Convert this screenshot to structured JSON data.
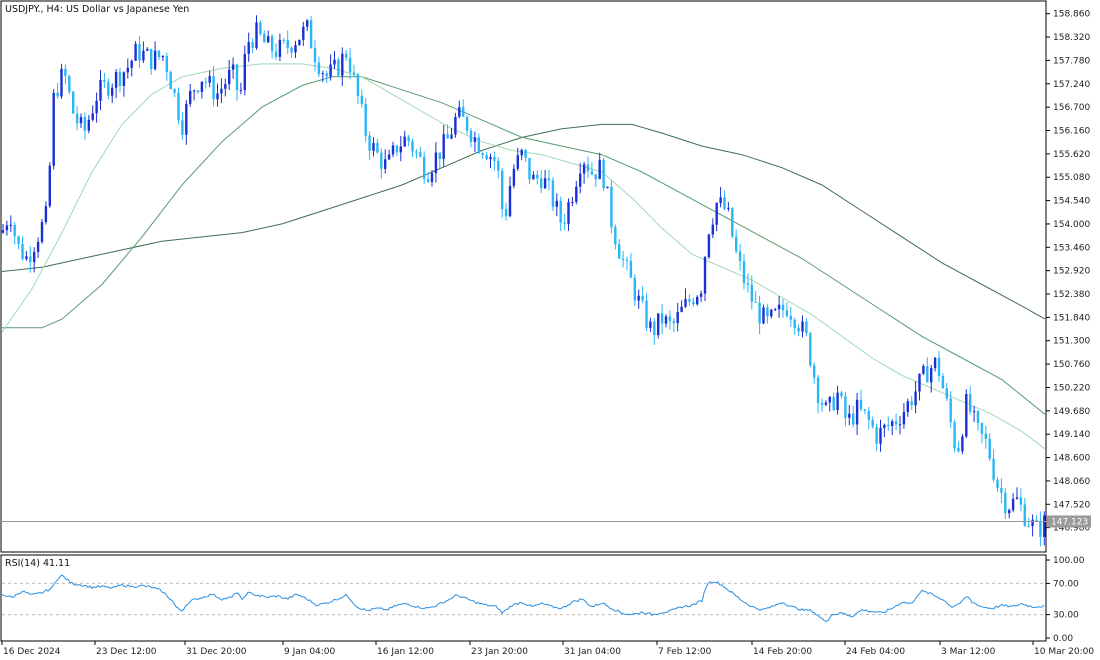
{
  "chart_data": [
    {
      "type": "candlestick",
      "title": "USDJPY., H4:  US Dollar vs Japanese Yen",
      "ylim": [
        146.44,
        159.13
      ],
      "y_ticks": [
        "158.860",
        "158.320",
        "157.780",
        "157.240",
        "156.700",
        "156.160",
        "155.620",
        "155.080",
        "154.540",
        "154.000",
        "153.460",
        "152.920",
        "152.380",
        "151.840",
        "151.300",
        "150.760",
        "150.220",
        "149.680",
        "149.140",
        "148.600",
        "148.060",
        "147.520",
        "146.980"
      ],
      "x_ticks": [
        "16 Dec 2024",
        "23 Dec 12:00",
        "31 Dec 20:00",
        "9 Jan 04:00",
        "16 Jan 12:00",
        "23 Jan 20:00",
        "31 Jan 04:00",
        "7 Feb 12:00",
        "14 Feb 20:00",
        "24 Feb 04:00",
        "3 Mar 12:00",
        "10 Mar 20:00"
      ],
      "current_price": "147.123",
      "close_path": [
        [
          0,
          153.8
        ],
        [
          8,
          154.3
        ],
        [
          15,
          153.5
        ],
        [
          25,
          153.2
        ],
        [
          35,
          153.7
        ],
        [
          45,
          154.2
        ],
        [
          52,
          157.0
        ],
        [
          62,
          157.5
        ],
        [
          72,
          156.5
        ],
        [
          82,
          156.1
        ],
        [
          95,
          157.0
        ],
        [
          110,
          157.3
        ],
        [
          125,
          157.6
        ],
        [
          135,
          158.0
        ],
        [
          150,
          157.8
        ],
        [
          162,
          157.9
        ],
        [
          170,
          157.2
        ],
        [
          180,
          156.3
        ],
        [
          190,
          157.1
        ],
        [
          200,
          157.4
        ],
        [
          215,
          157.0
        ],
        [
          230,
          157.5
        ],
        [
          238,
          156.9
        ],
        [
          245,
          158.2
        ],
        [
          255,
          158.4
        ],
        [
          265,
          158.1
        ],
        [
          275,
          158.0
        ],
        [
          285,
          158.1
        ],
        [
          295,
          158.3
        ],
        [
          305,
          158.5
        ],
        [
          315,
          157.8
        ],
        [
          325,
          157.4
        ],
        [
          335,
          157.6
        ],
        [
          345,
          158.0
        ],
        [
          355,
          157.0
        ],
        [
          365,
          156.0
        ],
        [
          375,
          155.6
        ],
        [
          385,
          155.3
        ],
        [
          395,
          155.8
        ],
        [
          405,
          156.0
        ],
        [
          415,
          155.6
        ],
        [
          425,
          155.2
        ],
        [
          435,
          155.6
        ],
        [
          445,
          155.9
        ],
        [
          455,
          156.5
        ],
        [
          465,
          156.3
        ],
        [
          475,
          155.9
        ],
        [
          485,
          155.7
        ],
        [
          495,
          155.4
        ],
        [
          502,
          154.0
        ],
        [
          510,
          155.2
        ],
        [
          520,
          155.6
        ],
        [
          530,
          155.0
        ],
        [
          540,
          155.1
        ],
        [
          550,
          154.6
        ],
        [
          560,
          154.0
        ],
        [
          570,
          154.7
        ],
        [
          580,
          155.6
        ],
        [
          590,
          155.2
        ],
        [
          600,
          155.3
        ],
        [
          610,
          154.0
        ],
        [
          620,
          153.2
        ],
        [
          630,
          152.6
        ],
        [
          640,
          152.0
        ],
        [
          650,
          151.5
        ],
        [
          660,
          151.8
        ],
        [
          670,
          151.6
        ],
        [
          680,
          152.0
        ],
        [
          690,
          152.3
        ],
        [
          700,
          152.6
        ],
        [
          705,
          153.8
        ],
        [
          715,
          154.5
        ],
        [
          725,
          154.3
        ],
        [
          735,
          153.2
        ],
        [
          745,
          152.5
        ],
        [
          755,
          152.0
        ],
        [
          765,
          151.7
        ],
        [
          775,
          151.9
        ],
        [
          785,
          152.1
        ],
        [
          795,
          151.8
        ],
        [
          805,
          151.3
        ],
        [
          815,
          150.2
        ],
        [
          825,
          149.6
        ],
        [
          835,
          150.1
        ],
        [
          845,
          149.4
        ],
        [
          855,
          149.7
        ],
        [
          865,
          149.5
        ],
        [
          875,
          149.1
        ],
        [
          885,
          149.3
        ],
        [
          895,
          149.5
        ],
        [
          905,
          149.8
        ],
        [
          915,
          150.2
        ],
        [
          925,
          150.6
        ],
        [
          935,
          150.8
        ],
        [
          945,
          149.8
        ],
        [
          955,
          148.7
        ],
        [
          965,
          149.9
        ],
        [
          975,
          149.2
        ],
        [
          985,
          148.9
        ],
        [
          995,
          148.0
        ],
        [
          1005,
          147.5
        ],
        [
          1015,
          147.6
        ],
        [
          1025,
          147.2
        ],
        [
          1035,
          146.9
        ],
        [
          1043,
          147.1
        ]
      ],
      "ma_fast": [
        [
          0,
          151.5
        ],
        [
          30,
          152.5
        ],
        [
          60,
          153.8
        ],
        [
          90,
          155.2
        ],
        [
          120,
          156.3
        ],
        [
          150,
          157.0
        ],
        [
          180,
          157.4
        ],
        [
          220,
          157.6
        ],
        [
          260,
          157.7
        ],
        [
          300,
          157.7
        ],
        [
          330,
          157.6
        ],
        [
          360,
          157.4
        ],
        [
          390,
          157.0
        ],
        [
          420,
          156.6
        ],
        [
          450,
          156.2
        ],
        [
          480,
          155.9
        ],
        [
          510,
          155.7
        ],
        [
          540,
          155.6
        ],
        [
          570,
          155.4
        ],
        [
          600,
          155.2
        ],
        [
          630,
          154.6
        ],
        [
          660,
          153.9
        ],
        [
          690,
          153.3
        ],
        [
          720,
          153.0
        ],
        [
          750,
          152.7
        ],
        [
          780,
          152.3
        ],
        [
          810,
          151.9
        ],
        [
          840,
          151.4
        ],
        [
          870,
          150.9
        ],
        [
          900,
          150.5
        ],
        [
          930,
          150.2
        ],
        [
          960,
          149.9
        ],
        [
          990,
          149.6
        ],
        [
          1020,
          149.2
        ],
        [
          1043,
          148.8
        ]
      ],
      "ma_mid": [
        [
          0,
          151.6
        ],
        [
          40,
          151.6
        ],
        [
          60,
          151.8
        ],
        [
          100,
          152.6
        ],
        [
          140,
          153.7
        ],
        [
          180,
          154.9
        ],
        [
          220,
          155.9
        ],
        [
          260,
          156.7
        ],
        [
          300,
          157.2
        ],
        [
          330,
          157.4
        ],
        [
          360,
          157.4
        ],
        [
          400,
          157.1
        ],
        [
          440,
          156.8
        ],
        [
          480,
          156.4
        ],
        [
          520,
          156.0
        ],
        [
          560,
          155.8
        ],
        [
          600,
          155.6
        ],
        [
          640,
          155.2
        ],
        [
          680,
          154.7
        ],
        [
          720,
          154.2
        ],
        [
          760,
          153.7
        ],
        [
          800,
          153.2
        ],
        [
          840,
          152.6
        ],
        [
          880,
          152.0
        ],
        [
          920,
          151.4
        ],
        [
          960,
          150.9
        ],
        [
          1000,
          150.4
        ],
        [
          1043,
          149.6
        ]
      ],
      "ma_slow": [
        [
          0,
          152.9
        ],
        [
          40,
          153.0
        ],
        [
          80,
          153.2
        ],
        [
          120,
          153.4
        ],
        [
          160,
          153.6
        ],
        [
          200,
          153.7
        ],
        [
          240,
          153.8
        ],
        [
          280,
          154.0
        ],
        [
          320,
          154.3
        ],
        [
          360,
          154.6
        ],
        [
          400,
          154.9
        ],
        [
          440,
          155.3
        ],
        [
          480,
          155.7
        ],
        [
          520,
          156.0
        ],
        [
          560,
          156.2
        ],
        [
          600,
          156.3
        ],
        [
          630,
          156.3
        ],
        [
          660,
          156.1
        ],
        [
          700,
          155.8
        ],
        [
          740,
          155.6
        ],
        [
          780,
          155.3
        ],
        [
          820,
          154.9
        ],
        [
          860,
          154.3
        ],
        [
          900,
          153.7
        ],
        [
          940,
          153.1
        ],
        [
          980,
          152.6
        ],
        [
          1020,
          152.1
        ],
        [
          1043,
          151.8
        ]
      ]
    },
    {
      "type": "line",
      "title": "RSI(14) 41.11",
      "ylim": [
        0,
        100
      ],
      "y_ticks": [
        "100.00",
        "70.00",
        "30.00",
        "0.00"
      ],
      "levels": [
        70,
        30
      ],
      "series": [
        {
          "values": [
            [
              0,
              56
            ],
            [
              10,
              52
            ],
            [
              20,
              60
            ],
            [
              30,
              55
            ],
            [
              40,
              58
            ],
            [
              50,
              64
            ],
            [
              55,
              76
            ],
            [
              60,
              80
            ],
            [
              65,
              75
            ],
            [
              70,
              70
            ],
            [
              80,
              68
            ],
            [
              90,
              65
            ],
            [
              100,
              66
            ],
            [
              110,
              64
            ],
            [
              120,
              68
            ],
            [
              130,
              66
            ],
            [
              140,
              67
            ],
            [
              150,
              65
            ],
            [
              160,
              60
            ],
            [
              170,
              48
            ],
            [
              175,
              38
            ],
            [
              180,
              35
            ],
            [
              185,
              44
            ],
            [
              190,
              48
            ],
            [
              200,
              52
            ],
            [
              210,
              56
            ],
            [
              220,
              50
            ],
            [
              230,
              52
            ],
            [
              235,
              60
            ],
            [
              240,
              48
            ],
            [
              245,
              58
            ],
            [
              255,
              55
            ],
            [
              265,
              52
            ],
            [
              275,
              54
            ],
            [
              285,
              50
            ],
            [
              295,
              56
            ],
            [
              305,
              50
            ],
            [
              315,
              42
            ],
            [
              325,
              45
            ],
            [
              335,
              50
            ],
            [
              345,
              55
            ],
            [
              355,
              40
            ],
            [
              365,
              35
            ],
            [
              375,
              38
            ],
            [
              385,
              36
            ],
            [
              395,
              42
            ],
            [
              405,
              44
            ],
            [
              415,
              40
            ],
            [
              425,
              38
            ],
            [
              435,
              42
            ],
            [
              445,
              48
            ],
            [
              455,
              55
            ],
            [
              465,
              50
            ],
            [
              475,
              45
            ],
            [
              485,
              42
            ],
            [
              495,
              40
            ],
            [
              500,
              32
            ],
            [
              510,
              42
            ],
            [
              520,
              46
            ],
            [
              530,
              40
            ],
            [
              540,
              44
            ],
            [
              550,
              40
            ],
            [
              560,
              38
            ],
            [
              570,
              46
            ],
            [
              580,
              50
            ],
            [
              590,
              40
            ],
            [
              600,
              45
            ],
            [
              610,
              38
            ],
            [
              620,
              32
            ],
            [
              630,
              30
            ],
            [
              640,
              33
            ],
            [
              650,
              30
            ],
            [
              660,
              33
            ],
            [
              670,
              35
            ],
            [
              680,
              40
            ],
            [
              690,
              42
            ],
            [
              700,
              48
            ],
            [
              705,
              70
            ],
            [
              712,
              73
            ],
            [
              720,
              68
            ],
            [
              730,
              58
            ],
            [
              740,
              48
            ],
            [
              750,
              40
            ],
            [
              760,
              36
            ],
            [
              770,
              40
            ],
            [
              780,
              46
            ],
            [
              790,
              40
            ],
            [
              800,
              36
            ],
            [
              810,
              35
            ],
            [
              820,
              24
            ],
            [
              825,
              22
            ],
            [
              830,
              30
            ],
            [
              840,
              32
            ],
            [
              850,
              28
            ],
            [
              860,
              36
            ],
            [
              870,
              34
            ],
            [
              880,
              32
            ],
            [
              890,
              38
            ],
            [
              900,
              46
            ],
            [
              910,
              44
            ],
            [
              915,
              55
            ],
            [
              920,
              60
            ],
            [
              930,
              56
            ],
            [
              940,
              50
            ],
            [
              950,
              40
            ],
            [
              960,
              46
            ],
            [
              965,
              54
            ],
            [
              970,
              46
            ],
            [
              980,
              40
            ],
            [
              990,
              38
            ],
            [
              1000,
              42
            ],
            [
              1010,
              40
            ],
            [
              1020,
              44
            ],
            [
              1030,
              40
            ],
            [
              1043,
              41
            ]
          ]
        }
      ]
    }
  ]
}
